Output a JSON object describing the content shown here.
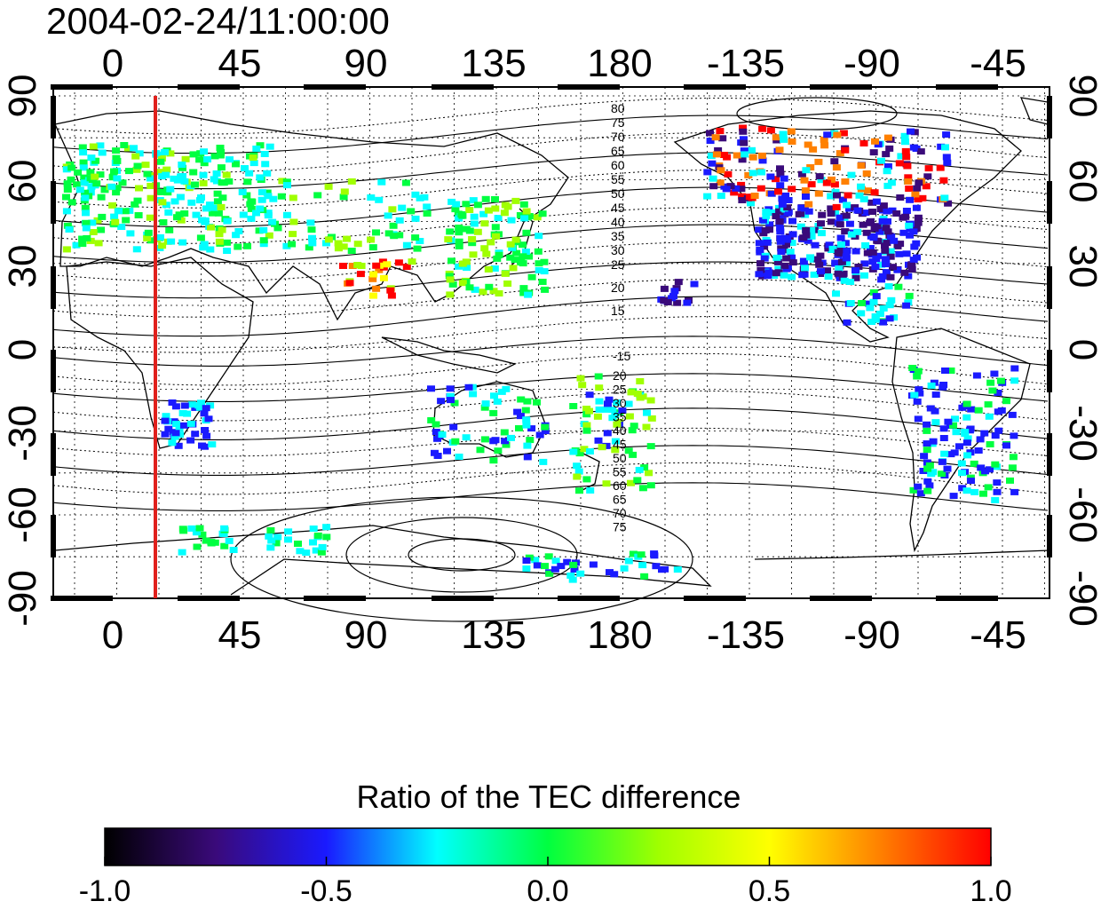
{
  "title": "2004-02-24/11:00:00",
  "map": {
    "top_lon_labels": [
      "0",
      "45",
      "90",
      "135",
      "180",
      "-135",
      "-90",
      "-45"
    ],
    "bottom_lon_labels": [
      "0",
      "45",
      "90",
      "135",
      "180",
      "-135",
      "-90",
      "-45"
    ],
    "left_lat_labels": [
      "90",
      "60",
      "30",
      "0",
      "-30",
      "-60",
      "-90"
    ],
    "right_lat_labels": [
      "90",
      "60",
      "30",
      "0",
      "-30",
      "-60",
      "-90"
    ],
    "contour_labels_north": [
      "80",
      "75",
      "70",
      "65",
      "60",
      "55",
      "50",
      "45",
      "40",
      "35",
      "30",
      "25",
      "20",
      "15"
    ],
    "contour_labels_south": [
      "-15",
      "20",
      "25",
      "30",
      "35",
      "40",
      "45",
      "50",
      "55",
      "60",
      "65",
      "70",
      "75"
    ],
    "marker_longitude": 15,
    "marker_color": "#e0201c",
    "lon_range": [
      -10,
      165
    ],
    "lat_range": [
      -90,
      90
    ],
    "projection": "equirectangular",
    "grid": true
  },
  "colorbar": {
    "title": "Ratio of the TEC difference",
    "tick_labels": [
      "-1.0",
      "-0.5",
      "0.0",
      "0.5",
      "1.0"
    ],
    "range": [
      -1.0,
      1.0
    ],
    "colors": [
      "#000000",
      "#3a0a7a",
      "#1a1aff",
      "#00ffff",
      "#00ff40",
      "#a0ff00",
      "#ffff00",
      "#ff8000",
      "#ff0000"
    ]
  }
}
